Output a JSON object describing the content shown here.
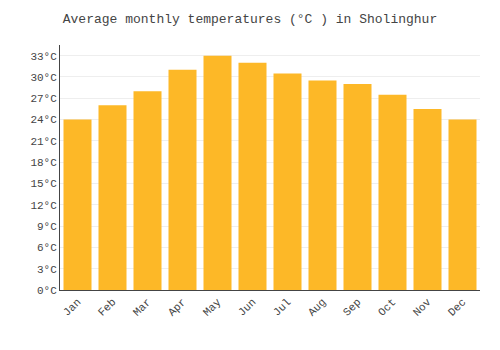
{
  "chart_data": {
    "type": "bar",
    "title": "Average monthly temperatures (°C ) in Sholinghur",
    "categories": [
      "Jan",
      "Feb",
      "Mar",
      "Apr",
      "May",
      "Jun",
      "Jul",
      "Aug",
      "Sep",
      "Oct",
      "Nov",
      "Dec"
    ],
    "values": [
      24,
      26,
      28,
      31,
      33,
      32,
      30.5,
      29.5,
      29,
      27.5,
      25.5,
      24
    ],
    "color": "#FDB827",
    "ylim": [
      0,
      34.5
    ],
    "yticks": [
      {
        "value": 0,
        "label": "0°C"
      },
      {
        "value": 3,
        "label": "3°C"
      },
      {
        "value": 6,
        "label": "6°C"
      },
      {
        "value": 9,
        "label": "9°C"
      },
      {
        "value": 12,
        "label": "12°C"
      },
      {
        "value": 15,
        "label": "15°C"
      },
      {
        "value": 18,
        "label": "18°C"
      },
      {
        "value": 21,
        "label": "21°C"
      },
      {
        "value": 24,
        "label": "24°C"
      },
      {
        "value": 27,
        "label": "27°C"
      },
      {
        "value": 30,
        "label": "30°C"
      },
      {
        "value": 33,
        "label": "33°C"
      }
    ],
    "grid": true
  }
}
